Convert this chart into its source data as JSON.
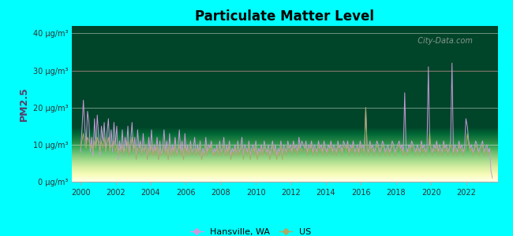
{
  "title": "Particulate Matter Level",
  "ylabel": "PM2.5",
  "background_color": "#00FFFF",
  "hansville_color": "#cc99dd",
  "us_color": "#aaaa66",
  "ylim": [
    0,
    42
  ],
  "yticks": [
    0,
    10,
    20,
    30,
    40
  ],
  "ytick_labels": [
    "0 μg/m³",
    "10 μg/m³",
    "20 μg/m³",
    "30 μg/m³",
    "40 μg/m³"
  ],
  "xlim": [
    1999.5,
    2023.8
  ],
  "xticks": [
    2000,
    2002,
    2004,
    2006,
    2008,
    2010,
    2012,
    2014,
    2016,
    2018,
    2020,
    2022
  ],
  "watermark": "City-Data.com",
  "legend_hansville": "Hansville, WA",
  "legend_us": "US",
  "hansville_data": [
    8.0,
    14.0,
    22.0,
    15.0,
    10.0,
    19.0,
    16.0,
    8.0,
    12.0,
    7.0,
    17.0,
    10.0,
    18.0,
    12.0,
    7.0,
    15.0,
    11.0,
    16.0,
    8.0,
    13.0,
    17.0,
    9.0,
    14.0,
    8.0,
    16.0,
    10.0,
    15.0,
    6.0,
    11.0,
    8.0,
    14.0,
    7.0,
    12.0,
    9.0,
    15.0,
    7.0,
    11.0,
    16.0,
    8.0,
    12.0,
    6.0,
    14.0,
    9.0,
    11.0,
    7.0,
    13.0,
    8.0,
    10.0,
    6.0,
    12.0,
    8.0,
    14.0,
    7.0,
    10.0,
    8.0,
    12.0,
    6.0,
    11.0,
    7.0,
    9.0,
    14.0,
    8.0,
    11.0,
    6.0,
    13.0,
    7.0,
    10.0,
    8.0,
    12.0,
    7.0,
    9.0,
    14.0,
    8.0,
    11.0,
    6.0,
    13.0,
    8.0,
    10.0,
    7.0,
    11.0,
    8.0,
    9.0,
    12.0,
    7.0,
    10.0,
    8.0,
    11.0,
    6.0,
    9.0,
    7.0,
    12.0,
    8.0,
    10.0,
    9.0,
    11.0,
    7.0,
    9.0,
    8.0,
    10.0,
    7.0,
    11.0,
    8.0,
    9.0,
    12.0,
    7.0,
    10.0,
    8.0,
    11.0,
    7.0,
    9.0,
    8.0,
    10.0,
    7.0,
    11.0,
    8.0,
    9.0,
    12.0,
    7.0,
    10.0,
    9.0,
    8.0,
    11.0,
    7.0,
    9.0,
    10.0,
    8.0,
    11.0,
    7.0,
    9.0,
    8.0,
    10.0,
    7.0,
    11.0,
    9.0,
    8.0,
    10.0,
    7.0,
    9.0,
    11.0,
    8.0,
    10.0,
    7.0,
    9.0,
    8.0,
    11.0,
    7.0,
    10.0,
    9.0,
    8.0,
    11.0,
    9.0,
    10.0,
    8.0,
    11.0,
    9.0,
    10.0,
    8.0,
    12.0,
    9.0,
    11.0,
    10.0,
    9.0,
    11.0,
    8.0,
    10.0,
    9.0,
    11.0,
    8.0,
    10.0,
    9.0,
    8.0,
    11.0,
    9.0,
    10.0,
    8.0,
    11.0,
    9.0,
    8.0,
    10.0,
    9.0,
    11.0,
    8.0,
    10.0,
    9.0,
    8.0,
    11.0,
    9.0,
    10.0,
    8.0,
    11.0,
    10.0,
    9.0,
    11.0,
    8.0,
    10.0,
    9.0,
    11.0,
    8.0,
    9.0,
    10.0,
    8.0,
    11.0,
    9.0,
    10.0,
    8.0,
    20.0,
    9.0,
    8.0,
    11.0,
    9.0,
    10.0,
    8.0,
    9.0,
    11.0,
    10.0,
    8.0,
    9.0,
    11.0,
    10.0,
    8.0,
    9.0,
    10.0,
    8.0,
    9.0,
    11.0,
    10.0,
    8.0,
    9.0,
    10.0,
    11.0,
    9.0,
    10.0,
    8.0,
    24.0,
    9.0,
    8.0,
    10.0,
    9.0,
    11.0,
    10.0,
    9.0,
    8.0,
    10.0,
    9.0,
    8.0,
    11.0,
    9.0,
    10.0,
    8.0,
    9.0,
    31.0,
    10.0,
    9.0,
    8.0,
    10.0,
    9.0,
    11.0,
    8.0,
    10.0,
    9.0,
    8.0,
    11.0,
    9.0,
    10.0,
    8.0,
    9.0,
    11.0,
    32.0,
    8.0,
    10.0,
    9.0,
    8.0,
    11.0,
    9.0,
    10.0,
    8.0,
    9.0,
    17.0,
    15.0,
    11.0,
    9.0,
    10.0,
    8.0,
    9.0,
    11.0,
    10.0,
    8.0,
    9.0,
    10.0,
    11.0,
    8.0,
    9.0,
    10.0,
    8.0,
    9.0,
    3.0,
    1.0
  ],
  "us_data": [
    9.0,
    11.0,
    13.0,
    10.0,
    9.0,
    12.0,
    11.0,
    9.0,
    10.0,
    8.0,
    11.0,
    9.0,
    12.0,
    10.0,
    8.0,
    11.0,
    9.0,
    12.0,
    8.0,
    10.0,
    12.0,
    8.0,
    10.0,
    9.0,
    11.0,
    8.0,
    10.0,
    7.0,
    9.0,
    8.0,
    10.0,
    7.0,
    9.0,
    8.0,
    11.0,
    7.0,
    9.0,
    12.0,
    8.0,
    10.0,
    6.0,
    9.0,
    8.0,
    10.0,
    7.0,
    9.0,
    8.0,
    10.0,
    6.0,
    9.0,
    7.0,
    10.0,
    7.0,
    9.0,
    7.0,
    10.0,
    6.0,
    9.0,
    7.0,
    8.0,
    10.0,
    7.0,
    9.0,
    6.0,
    10.0,
    7.0,
    9.0,
    7.0,
    10.0,
    7.0,
    8.0,
    10.0,
    7.0,
    9.0,
    6.0,
    10.0,
    7.0,
    9.0,
    7.0,
    10.0,
    7.0,
    8.0,
    9.0,
    7.0,
    9.0,
    7.0,
    10.0,
    6.0,
    8.0,
    7.0,
    10.0,
    7.0,
    9.0,
    8.0,
    10.0,
    7.0,
    8.0,
    7.0,
    9.0,
    7.0,
    10.0,
    7.0,
    8.0,
    10.0,
    7.0,
    9.0,
    7.0,
    10.0,
    6.0,
    8.0,
    7.0,
    9.0,
    7.0,
    10.0,
    7.0,
    8.0,
    10.0,
    6.0,
    9.0,
    8.0,
    7.0,
    10.0,
    6.0,
    8.0,
    9.0,
    7.0,
    10.0,
    6.0,
    8.0,
    7.0,
    9.0,
    7.0,
    10.0,
    8.0,
    7.0,
    9.0,
    6.0,
    8.0,
    10.0,
    7.0,
    9.0,
    6.0,
    8.0,
    7.0,
    10.0,
    6.0,
    9.0,
    8.0,
    7.0,
    10.0,
    8.0,
    9.0,
    7.0,
    10.0,
    8.0,
    9.0,
    7.0,
    10.0,
    8.0,
    9.0,
    8.0,
    8.0,
    10.0,
    7.0,
    9.0,
    8.0,
    10.0,
    7.0,
    9.0,
    8.0,
    7.0,
    10.0,
    8.0,
    9.0,
    7.0,
    10.0,
    8.0,
    7.0,
    9.0,
    8.0,
    10.0,
    7.0,
    9.0,
    8.0,
    7.0,
    10.0,
    8.0,
    9.0,
    7.0,
    10.0,
    9.0,
    8.0,
    10.0,
    7.0,
    9.0,
    8.0,
    10.0,
    7.0,
    8.0,
    9.0,
    7.0,
    10.0,
    8.0,
    9.0,
    7.0,
    20.0,
    8.0,
    7.0,
    10.0,
    8.0,
    9.0,
    7.0,
    8.0,
    10.0,
    9.0,
    7.0,
    8.0,
    10.0,
    9.0,
    7.0,
    8.0,
    9.0,
    7.0,
    8.0,
    10.0,
    9.0,
    7.0,
    8.0,
    9.0,
    10.0,
    8.0,
    9.0,
    7.0,
    8.0,
    8.0,
    7.0,
    9.0,
    8.0,
    10.0,
    9.0,
    8.0,
    7.0,
    9.0,
    8.0,
    7.0,
    10.0,
    8.0,
    9.0,
    7.0,
    8.0,
    9.0,
    13.0,
    8.0,
    7.0,
    9.0,
    8.0,
    10.0,
    7.0,
    9.0,
    8.0,
    7.0,
    10.0,
    8.0,
    9.0,
    7.0,
    8.0,
    10.0,
    9.0,
    7.0,
    9.0,
    8.0,
    7.0,
    10.0,
    8.0,
    9.0,
    7.0,
    8.0,
    9.0,
    13.0,
    10.0,
    8.0,
    9.0,
    7.0,
    8.0,
    10.0,
    9.0,
    7.0,
    8.0,
    9.0,
    10.0,
    7.0,
    8.0,
    9.0,
    7.0,
    8.0,
    8.0,
    8.0
  ]
}
